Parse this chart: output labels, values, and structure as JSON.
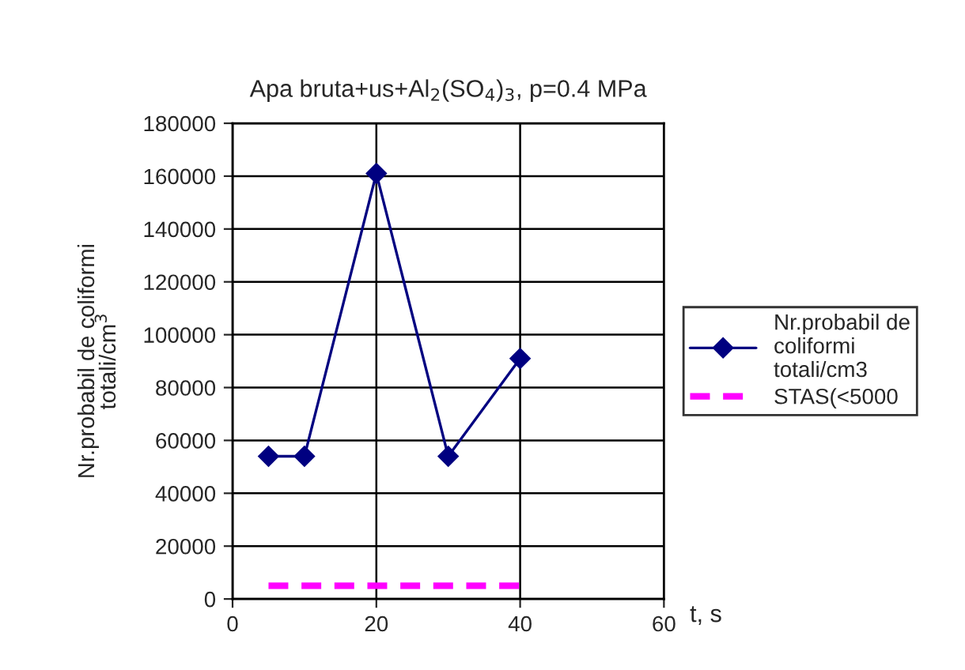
{
  "chart_data": {
    "type": "line",
    "title": "Apa bruta+us+Al$_{2}$(SO$_{4}$)$_{3}$, p=0.4 MPa",
    "xlabel": "t, s",
    "ylabel": "Nr.probabil de coliformi totali/cm$^{3}$",
    "x": [
      5,
      10,
      20,
      30,
      40
    ],
    "series": [
      {
        "name": "Nr.probabil de coliformi totali/cm3",
        "color": "#000080",
        "values": [
          54000,
          54000,
          161000,
          54000,
          91000
        ],
        "marker": "diamond",
        "line_style": "solid"
      },
      {
        "name": "STAS(<5000",
        "color": "#ff00ff",
        "values": [
          5000,
          5000,
          5000,
          5000,
          5000
        ],
        "marker": "none",
        "line_style": "dashed"
      }
    ],
    "xlim": [
      0,
      60
    ],
    "xticks": [
      0,
      20,
      40,
      60
    ],
    "ylim": [
      0,
      180000
    ],
    "yticks": [
      0,
      20000,
      40000,
      60000,
      80000,
      100000,
      120000,
      140000,
      160000,
      180000
    ],
    "grid": true,
    "legend": "right"
  }
}
